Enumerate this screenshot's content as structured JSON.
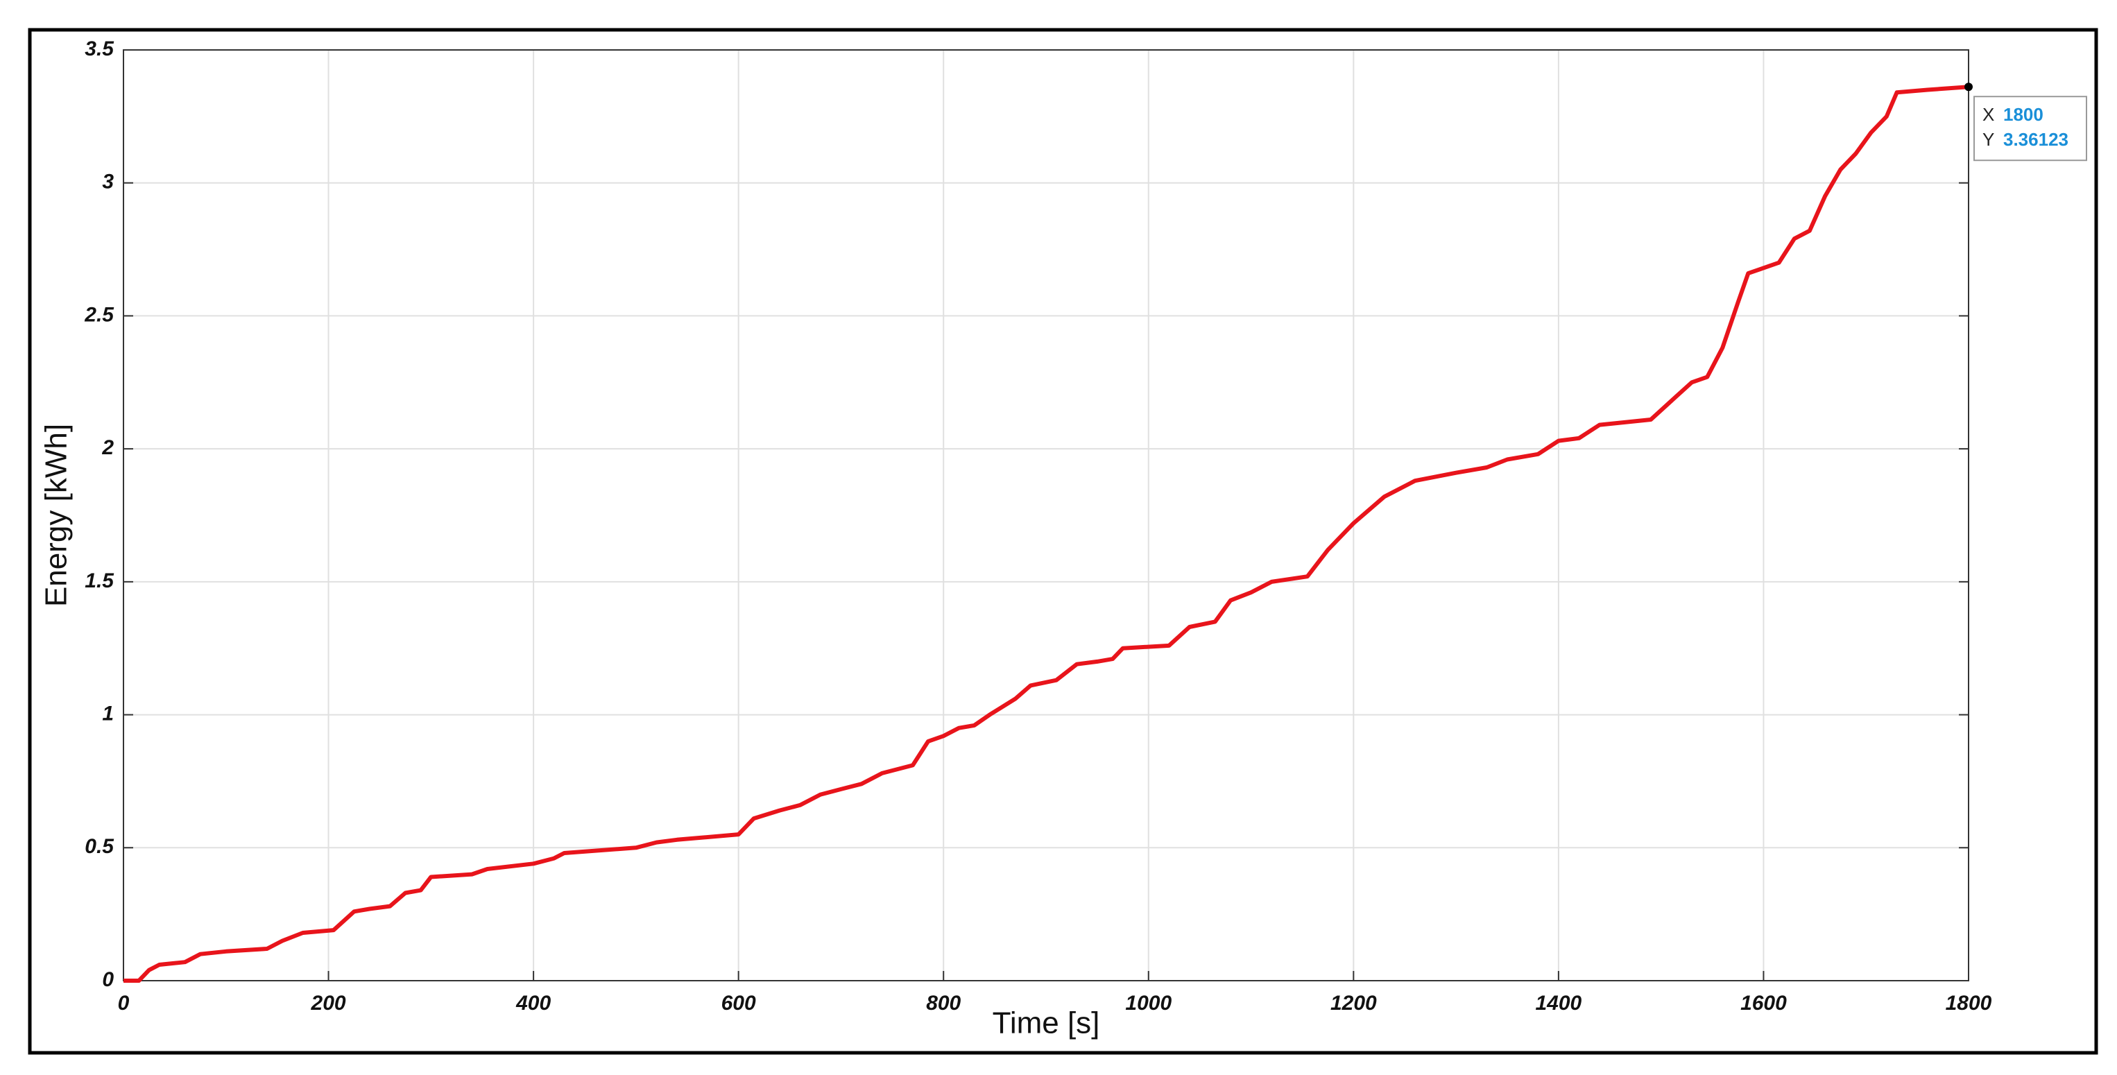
{
  "chart_data": {
    "type": "line",
    "xlabel": "Time [s]",
    "ylabel": "Energy [kWh]",
    "x": [
      0,
      15,
      25,
      35,
      60,
      75,
      100,
      140,
      155,
      175,
      205,
      225,
      240,
      260,
      275,
      290,
      300,
      340,
      355,
      400,
      420,
      430,
      500,
      520,
      540,
      600,
      615,
      640,
      660,
      680,
      700,
      720,
      740,
      770,
      785,
      800,
      815,
      830,
      845,
      870,
      885,
      910,
      930,
      950,
      965,
      975,
      1020,
      1040,
      1065,
      1080,
      1100,
      1120,
      1155,
      1175,
      1200,
      1230,
      1260,
      1300,
      1330,
      1350,
      1380,
      1400,
      1420,
      1440,
      1490,
      1510,
      1530,
      1545,
      1560,
      1575,
      1585,
      1600,
      1615,
      1630,
      1645,
      1660,
      1675,
      1690,
      1705,
      1720,
      1730,
      1760,
      1800
    ],
    "values": [
      0,
      0,
      0.04,
      0.06,
      0.07,
      0.1,
      0.11,
      0.12,
      0.15,
      0.18,
      0.19,
      0.26,
      0.27,
      0.28,
      0.33,
      0.34,
      0.39,
      0.4,
      0.42,
      0.44,
      0.46,
      0.48,
      0.5,
      0.52,
      0.53,
      0.55,
      0.61,
      0.64,
      0.66,
      0.7,
      0.72,
      0.74,
      0.78,
      0.81,
      0.9,
      0.92,
      0.95,
      0.96,
      1.0,
      1.06,
      1.11,
      1.13,
      1.19,
      1.2,
      1.21,
      1.25,
      1.26,
      1.33,
      1.35,
      1.43,
      1.46,
      1.5,
      1.52,
      1.62,
      1.72,
      1.82,
      1.88,
      1.91,
      1.93,
      1.96,
      1.98,
      2.03,
      2.04,
      2.09,
      2.11,
      2.18,
      2.25,
      2.27,
      2.38,
      2.55,
      2.66,
      2.68,
      2.7,
      2.79,
      2.82,
      2.95,
      3.05,
      3.11,
      3.19,
      3.25,
      3.34,
      3.35,
      3.36123
    ],
    "color": "#e8141b",
    "xlim": [
      0,
      1800
    ],
    "ylim": [
      0,
      3.5
    ],
    "xticks": [
      0,
      200,
      400,
      600,
      800,
      1000,
      1200,
      1400,
      1600,
      1800
    ],
    "yticks": [
      0,
      0.5,
      1,
      1.5,
      2,
      2.5,
      3,
      3.5
    ],
    "grid": true,
    "datatip": {
      "x_label": "X",
      "x_value": 1800,
      "y_label": "Y",
      "y_value": 3.36123
    }
  }
}
